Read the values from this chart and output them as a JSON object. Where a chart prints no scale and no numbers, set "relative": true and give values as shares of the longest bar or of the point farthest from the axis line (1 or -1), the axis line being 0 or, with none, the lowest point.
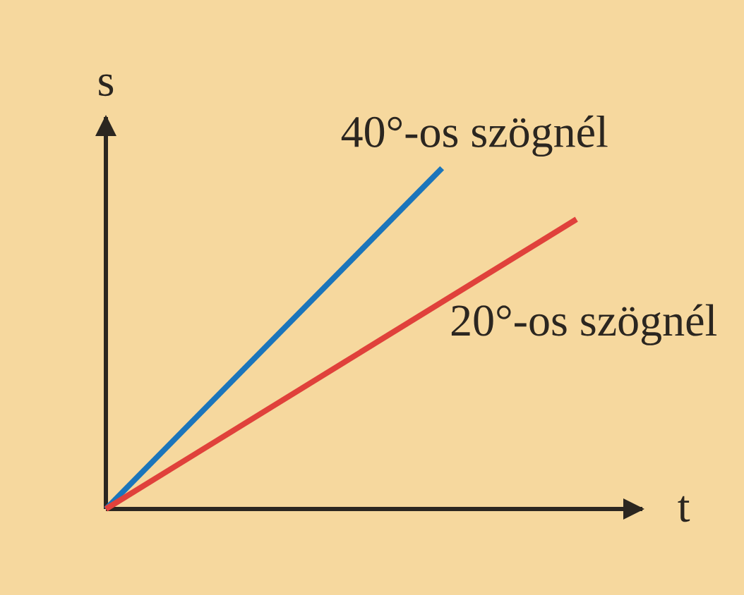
{
  "chart_data": {
    "type": "line",
    "relative": true,
    "xlabel": "t",
    "ylabel": "s",
    "categories": [
      null,
      null,
      null,
      null,
      null,
      null,
      null,
      null
    ],
    "series": [
      {
        "name": "40°-os szögnél",
        "color": "#1b75bb",
        "values": [
          0,
          null,
          null,
          null,
          null,
          1,
          null,
          null
        ]
      },
      {
        "name": "20°-os szögnél",
        "color": "#e0413b",
        "values": [
          0,
          null,
          null,
          null,
          null,
          null,
          null,
          0.85
        ]
      }
    ]
  }
}
